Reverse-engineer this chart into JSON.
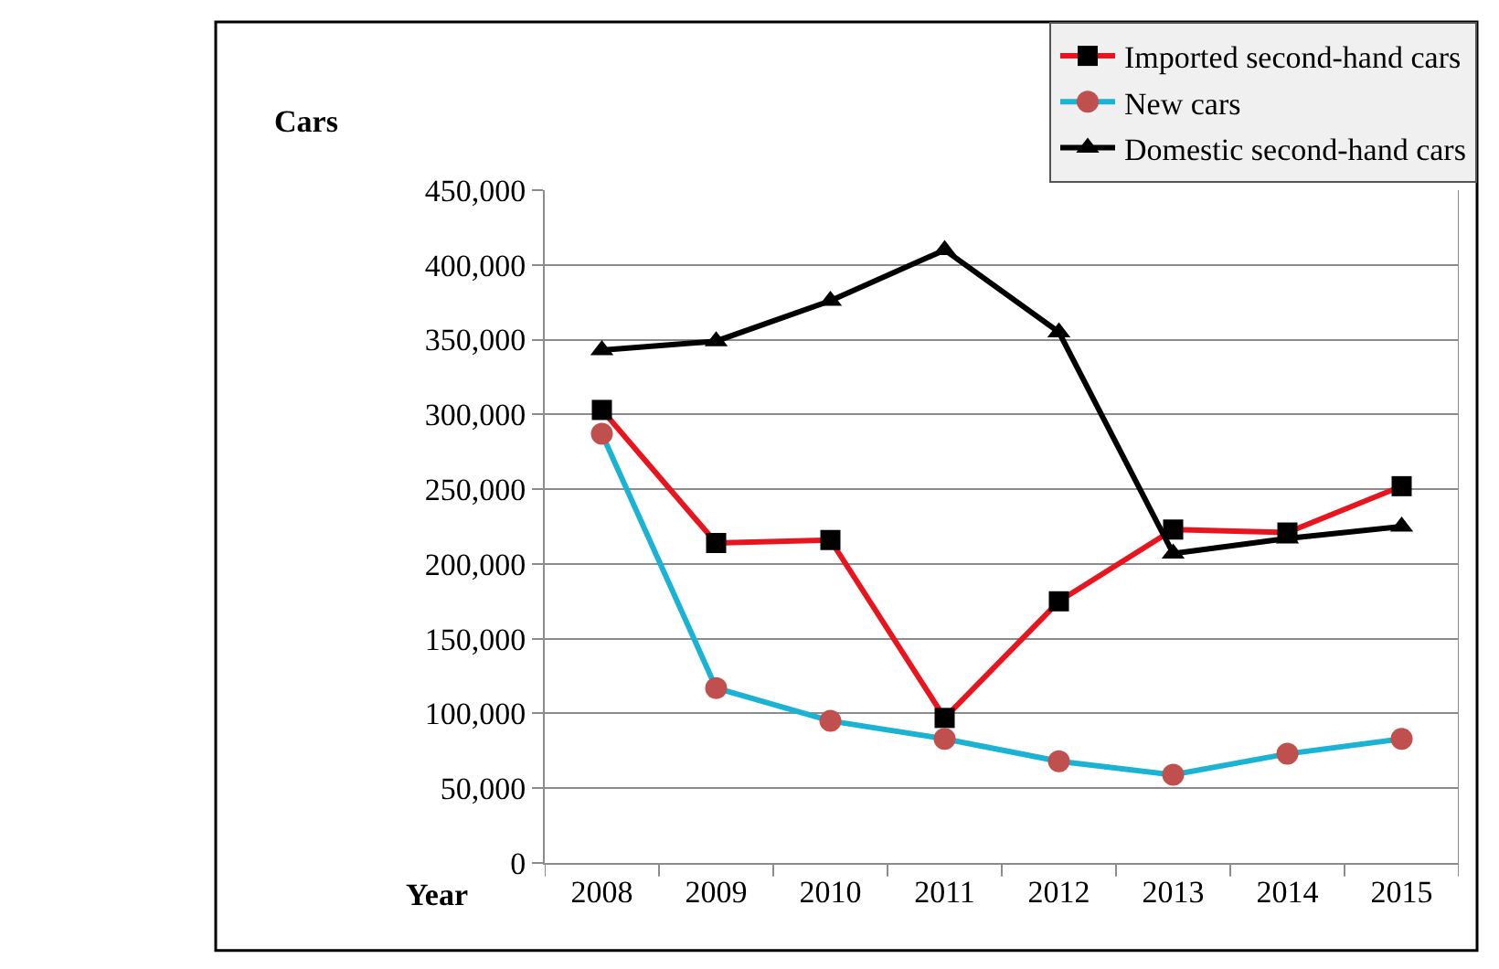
{
  "chart_data": {
    "type": "line",
    "xlabel": "Year",
    "ylabel": "Cars",
    "categories": [
      "2008",
      "2009",
      "2010",
      "2011",
      "2012",
      "2013",
      "2014",
      "2015"
    ],
    "series": [
      {
        "name": "Imported second-hand cars",
        "color": "#e8141e",
        "marker": "square",
        "values": [
          303000,
          214000,
          216000,
          97000,
          175000,
          223000,
          221000,
          252000
        ]
      },
      {
        "name": "New cars",
        "color": "#1ab3d3",
        "marker": "circle",
        "values": [
          287000,
          117000,
          95000,
          83000,
          68000,
          59000,
          73000,
          83000
        ]
      },
      {
        "name": "Domestic second-hand cars",
        "color": "#000000",
        "marker": "triangle",
        "values": [
          343000,
          349000,
          376000,
          410000,
          355000,
          207000,
          217000,
          225000
        ]
      }
    ],
    "ylim": [
      0,
      450000
    ],
    "yticks": [
      {
        "value": 0,
        "label": "0"
      },
      {
        "value": 50000,
        "label": "50,000"
      },
      {
        "value": 100000,
        "label": "100,000"
      },
      {
        "value": 150000,
        "label": "150,000"
      },
      {
        "value": 200000,
        "label": "200,000"
      },
      {
        "value": 250000,
        "label": "250,000"
      },
      {
        "value": 300000,
        "label": "300,000"
      },
      {
        "value": 350000,
        "label": "350,000"
      },
      {
        "value": 400000,
        "label": "400,000"
      },
      {
        "value": 450000,
        "label": "450,000"
      }
    ],
    "grid": "y",
    "legend": "top right"
  }
}
